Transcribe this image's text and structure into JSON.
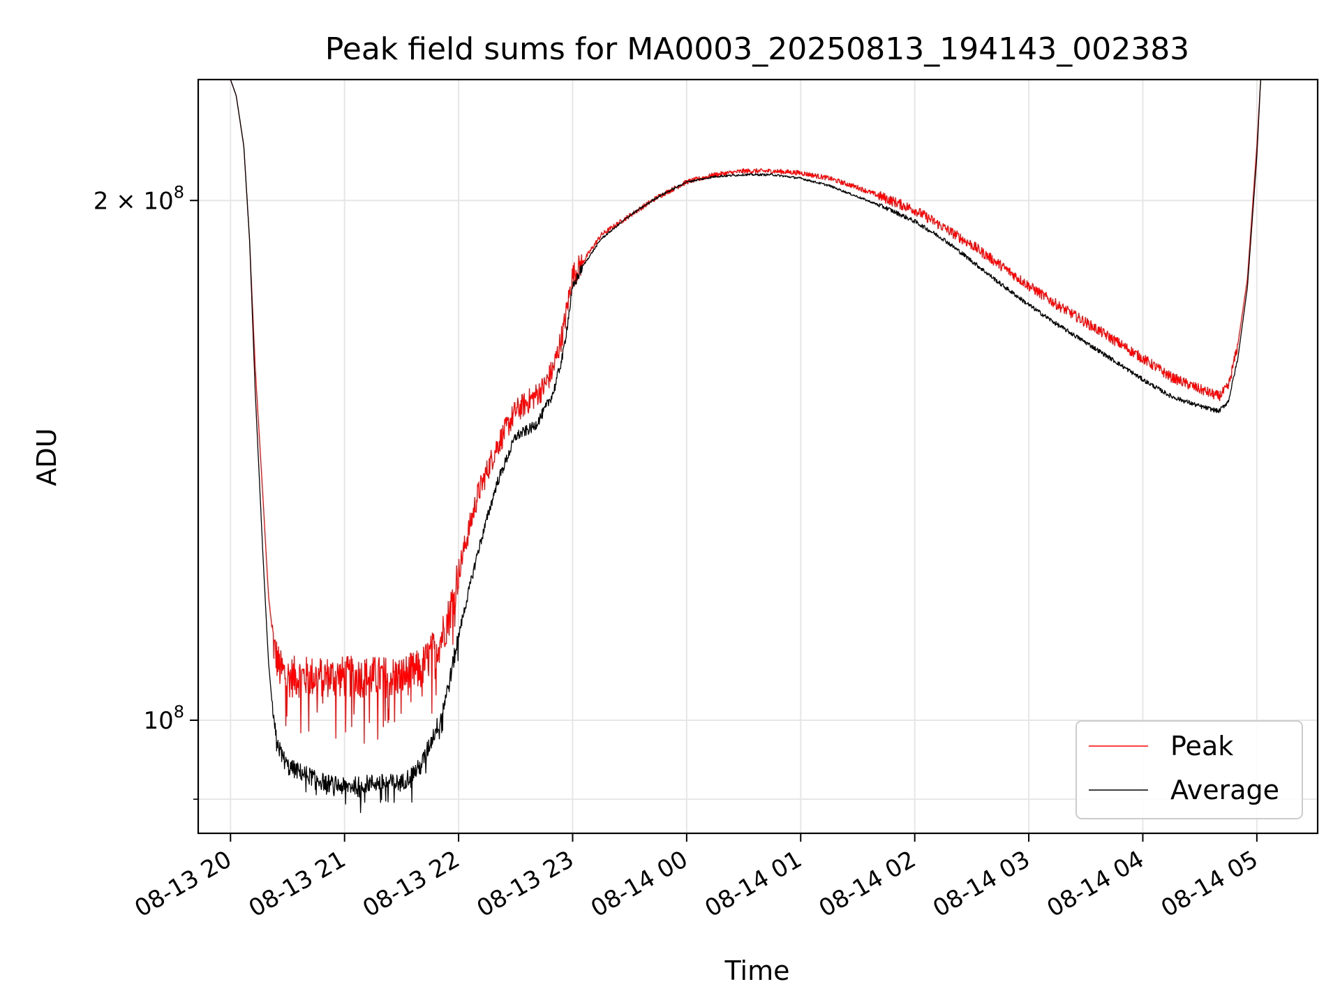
{
  "chart_data": {
    "type": "line",
    "title": "Peak field sums for MA0003_20250813_194143_002383",
    "xlabel": "Time",
    "ylabel": "ADU",
    "yscale": "log",
    "ylim": [
      86000000,
      235000000
    ],
    "xlim": [
      "08-13 19:43",
      "08-14 05:32"
    ],
    "grid": true,
    "legend_position": "lower right",
    "x_ticks": [
      "08-13 20",
      "08-13 21",
      "08-13 22",
      "08-13 23",
      "08-14 00",
      "08-14 01",
      "08-14 02",
      "08-14 03",
      "08-14 04",
      "08-14 05"
    ],
    "y_ticks": [
      {
        "value": 100000000,
        "base": "10",
        "exp": "8",
        "mult": ""
      },
      {
        "value": 200000000,
        "base": "10",
        "exp": "8",
        "mult": "2 × "
      }
    ],
    "y_minor_ticks": [
      90000000
    ],
    "colors": {
      "Peak": "#ff0000",
      "Average": "#000000",
      "grid": "#e6e6e6"
    },
    "series": [
      {
        "name": "Peak",
        "color": "#ff0000",
        "noise_frac": 0.028,
        "x": [
          "08-13 19:43",
          "08-13 20:00",
          "08-13 20:03",
          "08-13 20:07",
          "08-13 20:10",
          "08-13 20:13",
          "08-13 20:17",
          "08-13 20:20",
          "08-13 20:23",
          "08-13 20:26",
          "08-13 20:30",
          "08-13 20:40",
          "08-13 20:50",
          "08-13 21:00",
          "08-13 21:15",
          "08-13 21:30",
          "08-13 21:40",
          "08-13 21:50",
          "08-13 21:55",
          "08-13 22:00",
          "08-13 22:10",
          "08-13 22:20",
          "08-13 22:30",
          "08-13 22:40",
          "08-13 22:45",
          "08-13 22:50",
          "08-13 22:55",
          "08-13 23:00",
          "08-13 23:05",
          "08-13 23:15",
          "08-13 23:30",
          "08-13 23:45",
          "08-14 00:00",
          "08-14 00:15",
          "08-14 00:30",
          "08-14 00:45",
          "08-14 01:00",
          "08-14 01:15",
          "08-14 01:30",
          "08-14 01:45",
          "08-14 02:00",
          "08-14 02:15",
          "08-14 02:30",
          "08-14 02:45",
          "08-14 03:00",
          "08-14 03:15",
          "08-14 03:30",
          "08-14 03:45",
          "08-14 04:00",
          "08-14 04:15",
          "08-14 04:30",
          "08-14 04:40",
          "08-14 04:45",
          "08-14 04:50",
          "08-14 04:55",
          "08-14 05:00",
          "08-14 05:02",
          "08-14 05:32"
        ],
        "y": [
          235000000,
          235000000,
          230000000,
          215000000,
          190000000,
          160000000,
          135000000,
          118000000,
          110000000,
          107000000,
          106000000,
          106000000,
          106000000,
          106000000,
          106000000,
          106000000,
          107000000,
          111000000,
          115000000,
          122000000,
          135000000,
          144000000,
          151000000,
          154000000,
          156000000,
          160000000,
          168000000,
          181000000,
          184000000,
          191000000,
          196000000,
          201000000,
          205000000,
          207000000,
          208000000,
          208000000,
          207500000,
          206000000,
          203500000,
          200500000,
          197500000,
          193000000,
          188500000,
          183500000,
          178500000,
          174000000,
          170000000,
          166000000,
          162000000,
          158000000,
          155500000,
          154000000,
          156000000,
          165000000,
          180000000,
          215000000,
          235000000,
          235000000
        ]
      },
      {
        "name": "Average",
        "color": "#000000",
        "noise_frac": 0.012,
        "x": [
          "08-13 19:43",
          "08-13 20:00",
          "08-13 20:03",
          "08-13 20:07",
          "08-13 20:10",
          "08-13 20:13",
          "08-13 20:17",
          "08-13 20:20",
          "08-13 20:23",
          "08-13 20:26",
          "08-13 20:30",
          "08-13 20:40",
          "08-13 20:50",
          "08-13 21:00",
          "08-13 21:15",
          "08-13 21:30",
          "08-13 21:40",
          "08-13 21:50",
          "08-13 21:55",
          "08-13 22:00",
          "08-13 22:10",
          "08-13 22:20",
          "08-13 22:30",
          "08-13 22:40",
          "08-13 22:45",
          "08-13 22:50",
          "08-13 22:55",
          "08-13 23:00",
          "08-13 23:05",
          "08-13 23:15",
          "08-13 23:30",
          "08-13 23:45",
          "08-14 00:00",
          "08-14 00:15",
          "08-14 00:30",
          "08-14 00:45",
          "08-14 01:00",
          "08-14 01:15",
          "08-14 01:30",
          "08-14 01:45",
          "08-14 02:00",
          "08-14 02:15",
          "08-14 02:30",
          "08-14 02:45",
          "08-14 03:00",
          "08-14 03:15",
          "08-14 03:30",
          "08-14 03:45",
          "08-14 04:00",
          "08-14 04:15",
          "08-14 04:30",
          "08-14 04:40",
          "08-14 04:45",
          "08-14 04:50",
          "08-14 04:55",
          "08-14 05:00",
          "08-14 05:02",
          "08-14 05:32"
        ],
        "y": [
          235000000,
          235000000,
          230000000,
          215000000,
          190000000,
          155000000,
          125000000,
          108000000,
          99000000,
          96000000,
          94000000,
          93000000,
          92000000,
          91500000,
          92000000,
          92000000,
          94000000,
          100000000,
          105000000,
          112000000,
          125000000,
          137000000,
          146000000,
          148000000,
          151000000,
          155000000,
          163000000,
          178000000,
          183000000,
          190000000,
          196000000,
          201000000,
          205000000,
          206500000,
          207000000,
          207000000,
          206000000,
          204000000,
          201000000,
          198000000,
          194500000,
          190000000,
          184500000,
          179000000,
          174000000,
          169500000,
          165500000,
          161500000,
          157500000,
          154000000,
          152000000,
          151000000,
          153000000,
          162000000,
          178000000,
          212000000,
          235000000,
          235000000
        ]
      }
    ]
  }
}
